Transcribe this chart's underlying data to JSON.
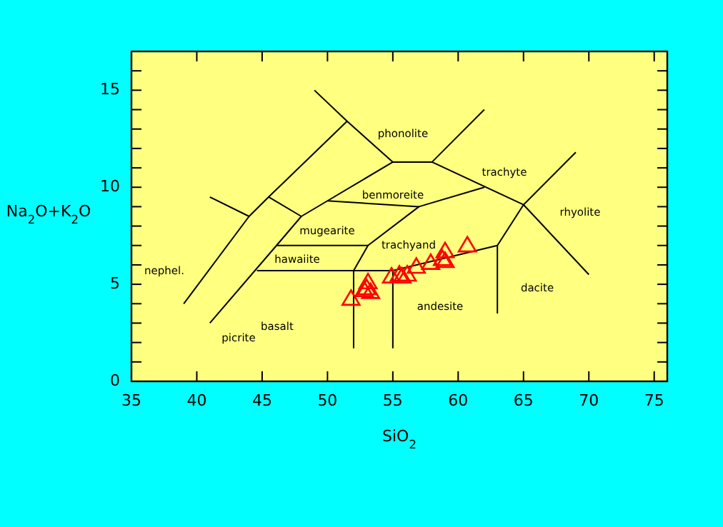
{
  "chart_data": {
    "type": "scatter",
    "xlabel": "SiO$_{2}$",
    "ylabel": "Na$_{2}$O+K$_{2}$O",
    "xlim": [
      35,
      76
    ],
    "ylim": [
      0,
      17
    ],
    "xticks": [
      35,
      40,
      45,
      50,
      55,
      60,
      65,
      70,
      75
    ],
    "yticks": [
      0,
      {
        "value": 1,
        "label": null
      },
      {
        "value": 2,
        "label": null
      },
      {
        "value": 3,
        "label": null
      },
      {
        "value": 4,
        "label": null
      },
      5,
      {
        "value": 6,
        "label": null
      },
      {
        "value": 7,
        "label": null
      },
      {
        "value": 8,
        "label": null
      },
      {
        "value": 9,
        "label": null
      },
      10,
      {
        "value": 11,
        "label": null
      },
      {
        "value": 12,
        "label": null
      },
      {
        "value": 13,
        "label": null
      },
      {
        "value": 14,
        "label": null
      },
      15,
      {
        "value": 16,
        "label": null
      }
    ],
    "grid": false,
    "series": [
      {
        "marker": "triangle",
        "color": "#ff0000",
        "x": [
          51.8,
          52.8,
          53,
          53.1,
          53.3,
          54.9,
          55.5,
          55.7,
          56.1,
          56.8,
          57.9,
          58.8,
          59,
          59,
          60.7
        ],
        "values": [
          4.25,
          4.7,
          4.8,
          5.1,
          4.6,
          5.4,
          5.5,
          5.4,
          5.5,
          5.9,
          6.1,
          6.3,
          6.7,
          6.2,
          7.0
        ]
      },
      {
        "type": "line",
        "color": "#000000",
        "x": [
          39,
          44,
          45.5,
          51.5
        ],
        "values": [
          4,
          8.5,
          9.5,
          13.4
        ]
      },
      {
        "type": "line",
        "color": "#000000",
        "x": [
          41,
          46.1,
          48,
          50,
          55,
          58,
          62
        ],
        "values": [
          3,
          7,
          8.5,
          9.3,
          11.3,
          11.3,
          14
        ]
      },
      {
        "type": "line",
        "color": "#000000",
        "x": [
          49,
          51.5,
          55
        ],
        "values": [
          15,
          13.4,
          11.3
        ]
      },
      {
        "type": "line",
        "color": "#000000",
        "x": [
          58,
          65,
          70
        ],
        "values": [
          11.3,
          9.1,
          5.5
        ]
      },
      {
        "type": "line",
        "color": "#000000",
        "x": [
          69,
          65,
          63,
          63
        ],
        "values": [
          11.8,
          9.1,
          7,
          3.5
        ]
      },
      {
        "type": "line",
        "color": "#000000",
        "x": [
          41,
          44
        ],
        "values": [
          9.5,
          8.5
        ]
      },
      {
        "type": "line",
        "color": "#000000",
        "x": [
          45.5,
          48
        ],
        "values": [
          9.5,
          8.5
        ]
      },
      {
        "type": "line",
        "color": "#000000",
        "x": [
          50,
          57,
          62
        ],
        "values": [
          9.3,
          9,
          10
        ]
      },
      {
        "type": "line",
        "color": "#000000",
        "x": [
          57,
          53.1,
          52,
          52
        ],
        "values": [
          9,
          7,
          5.7,
          1.7
        ]
      },
      {
        "type": "line",
        "color": "#000000",
        "x": [
          44.6,
          55,
          63
        ],
        "values": [
          5.7,
          5.7,
          7
        ]
      },
      {
        "type": "line",
        "color": "#000000",
        "x": [
          46.1,
          53.1
        ],
        "values": [
          7,
          7
        ]
      },
      {
        "type": "line",
        "color": "#000000",
        "x": [
          55,
          55
        ],
        "values": [
          5.7,
          1.7
        ]
      }
    ],
    "annotations": [
      "phonolite",
      "trachyte",
      "benmoreite",
      "rhyolite",
      "mugearite",
      "trachyand",
      "nephel.",
      "hawaiite",
      "dacite",
      "andesite",
      "basalt",
      "picrite"
    ]
  }
}
